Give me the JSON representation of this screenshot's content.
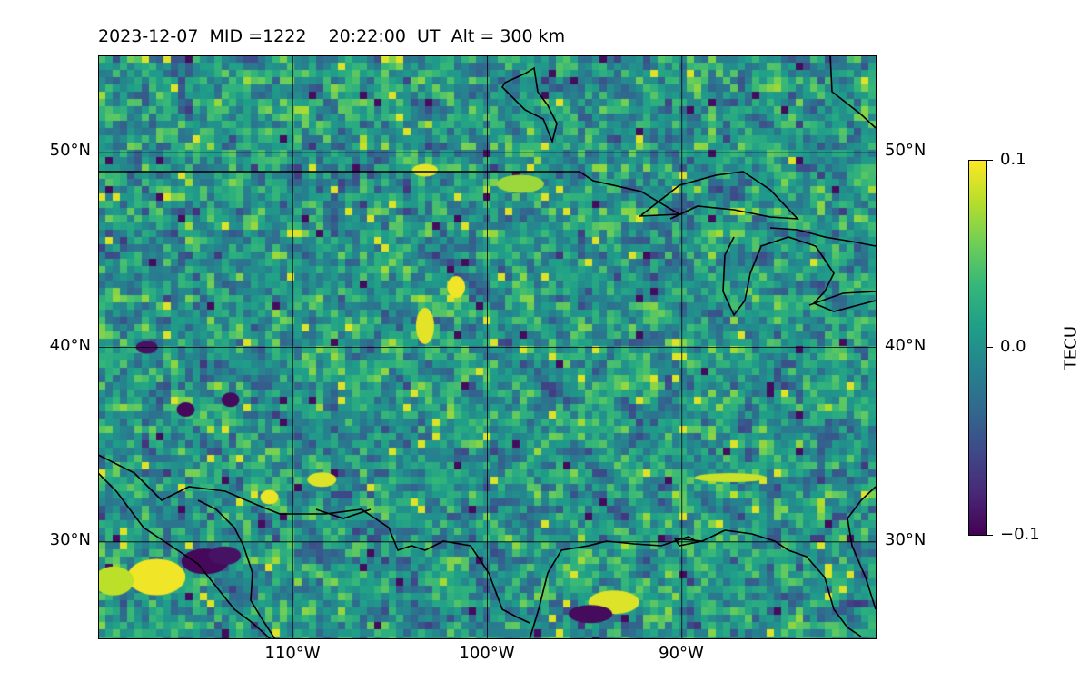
{
  "title": "2023-12-07  MID =1222    20:22:00  UT  Alt = 300 km",
  "map": {
    "lon_range": [
      -120,
      -80
    ],
    "lat_range": [
      25,
      55
    ],
    "gridlines_lon": [
      -110,
      -100,
      -90
    ],
    "gridlines_lat": [
      30,
      40,
      50
    ],
    "lon_tick_labels": [
      "110°W",
      "100°W",
      "90°W"
    ],
    "lat_tick_labels": [
      "30°N",
      "40°N",
      "50°N"
    ],
    "field_value_range": [
      -0.1,
      0.1
    ],
    "colormap": "viridis"
  },
  "colorbar": {
    "label": "TECU",
    "tick_labels": [
      "0.1",
      "0.0",
      "−0.1"
    ],
    "colors": [
      "#440154",
      "#482878",
      "#3e4989",
      "#31688e",
      "#26828e",
      "#1f9e89",
      "#35b779",
      "#6ece58",
      "#b5de2b",
      "#fde725"
    ]
  }
}
